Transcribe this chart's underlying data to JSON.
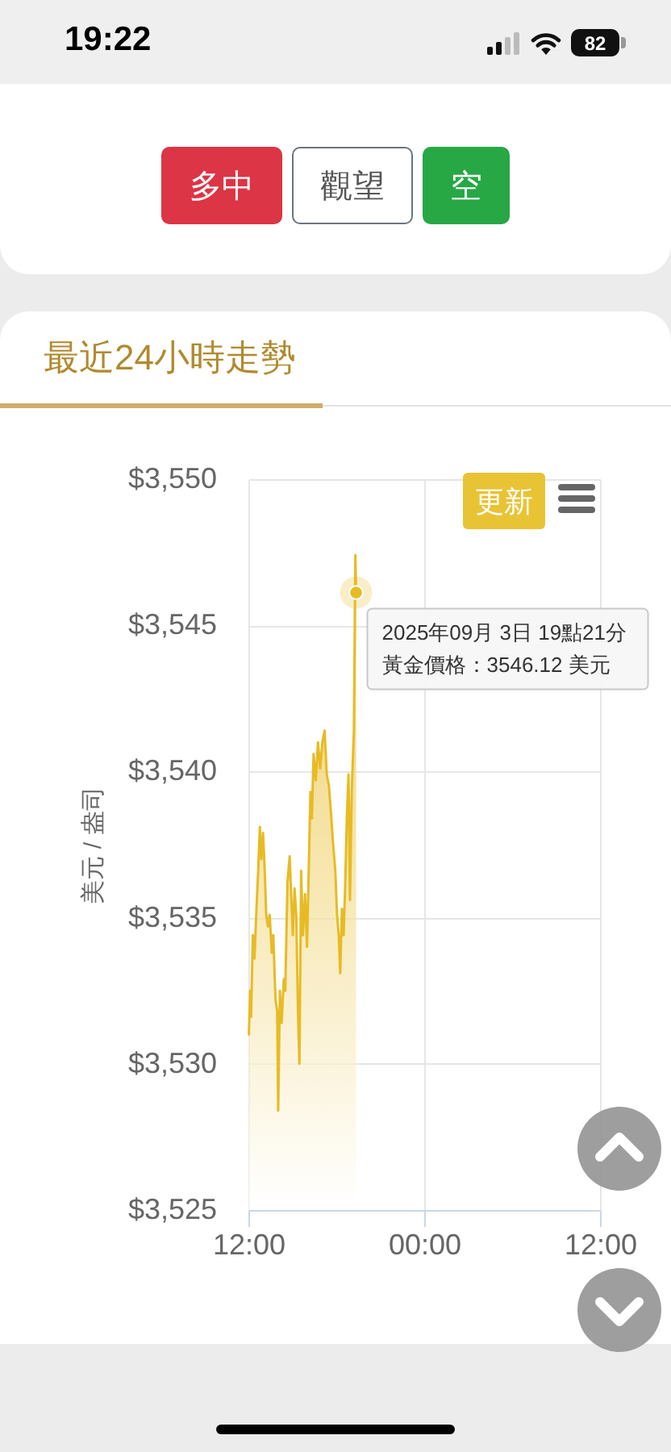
{
  "chart_data": {
    "type": "area",
    "title": "最近24小時走勢",
    "ylabel": "美元 / 盎司",
    "color": "#e8bb24",
    "x": [
      "2025-09-03T12:02",
      "2025-09-03T12:07",
      "2025-09-03T12:11",
      "2025-09-03T12:18",
      "2025-09-03T12:25",
      "2025-09-03T12:31",
      "2025-09-03T12:40",
      "2025-09-03T12:47",
      "2025-09-03T12:53",
      "2025-09-03T13:00",
      "2025-09-03T13:07",
      "2025-09-03T13:13",
      "2025-09-03T13:20",
      "2025-09-03T13:27",
      "2025-09-03T13:36",
      "2025-09-03T13:42",
      "2025-09-03T13:51",
      "2025-09-03T13:58",
      "2025-09-03T14:02",
      "2025-09-03T14:09",
      "2025-09-03T14:16",
      "2025-09-03T14:25",
      "2025-09-03T14:31",
      "2025-09-03T14:40",
      "2025-09-03T14:49",
      "2025-09-03T14:56",
      "2025-09-03T15:02",
      "2025-09-03T15:09",
      "2025-09-03T15:16",
      "2025-09-03T15:23",
      "2025-09-03T15:29",
      "2025-09-03T15:36",
      "2025-09-03T15:43",
      "2025-09-03T15:52",
      "2025-09-03T16:00",
      "2025-09-03T16:07",
      "2025-09-03T16:14",
      "2025-09-03T16:20",
      "2025-09-03T16:27",
      "2025-09-03T16:36",
      "2025-09-03T16:45",
      "2025-09-03T16:54",
      "2025-09-03T17:03",
      "2025-09-03T17:12",
      "2025-09-03T17:21",
      "2025-09-03T17:30",
      "2025-09-03T17:38",
      "2025-09-03T17:47",
      "2025-09-03T17:56",
      "2025-09-03T18:03",
      "2025-09-03T18:10",
      "2025-09-03T18:16",
      "2025-09-03T18:23",
      "2025-09-03T18:30",
      "2025-09-03T18:36",
      "2025-09-03T18:43",
      "2025-09-03T18:50",
      "2025-09-03T18:56",
      "2025-09-03T19:03",
      "2025-09-03T19:12",
      "2025-09-03T19:18",
      "2025-09-03T19:21"
    ],
    "values": [
      3531.0,
      3532.5,
      3531.6,
      3534.4,
      3533.6,
      3534.9,
      3536.6,
      3538.1,
      3537.0,
      3537.9,
      3536.6,
      3535.1,
      3534.7,
      3535.1,
      3533.8,
      3534.4,
      3532.2,
      3531.8,
      3528.4,
      3532.5,
      3531.4,
      3532.9,
      3532.5,
      3536.2,
      3537.1,
      3535.6,
      3534.4,
      3536.0,
      3535.1,
      3531.8,
      3530.0,
      3536.6,
      3534.4,
      3535.8,
      3534.0,
      3536.6,
      3539.3,
      3538.4,
      3540.6,
      3539.7,
      3541.0,
      3540.1,
      3541.0,
      3541.4,
      3539.9,
      3539.5,
      3538.6,
      3537.5,
      3536.6,
      3535.1,
      3534.4,
      3533.1,
      3535.3,
      3534.4,
      3536.0,
      3538.4,
      3539.9,
      3535.6,
      3539.3,
      3541.4,
      3547.4,
      3546.12
    ],
    "xlim": [
      "2025-09-03T12:00",
      "2025-09-04T12:00"
    ],
    "xticks": [
      {
        "value": "2025-09-03T12:00",
        "label": "12:00"
      },
      {
        "value": "2025-09-04T00:00",
        "label": "00:00"
      },
      {
        "value": "2025-09-04T12:00",
        "label": "12:00"
      }
    ],
    "ylim": [
      3525,
      3550
    ],
    "yticks": [
      {
        "value": 3525,
        "label": "$3,525"
      },
      {
        "value": 3530,
        "label": "$3,530"
      },
      {
        "value": 3535,
        "label": "$3,535"
      },
      {
        "value": 3540,
        "label": "$3,540"
      },
      {
        "value": 3545,
        "label": "$3,545"
      },
      {
        "value": 3550,
        "label": "$3,550"
      }
    ],
    "grid": true,
    "annotations": [
      "19:22",
      "82",
      "多中",
      "觀望",
      "空",
      "更新",
      {
        "text": "2025年09月 3日 19點21分",
        "x": "2025-09-03T19:21",
        "y": 3546.12
      },
      "黃金價格：3546.12 美元"
    ]
  }
}
